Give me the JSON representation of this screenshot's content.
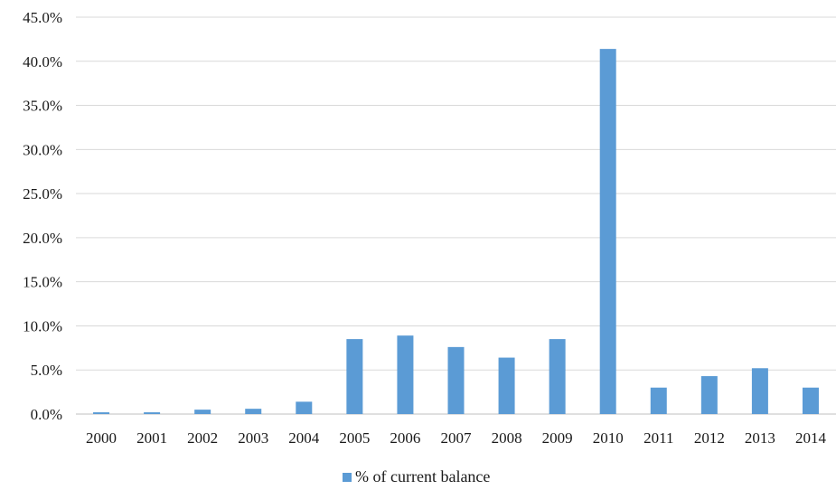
{
  "chart_data": {
    "type": "bar",
    "title": "",
    "xlabel": "",
    "ylabel": "",
    "categories": [
      "2000",
      "2001",
      "2002",
      "2003",
      "2004",
      "2005",
      "2006",
      "2007",
      "2008",
      "2009",
      "2010",
      "2011",
      "2012",
      "2013",
      "2014"
    ],
    "series": [
      {
        "name": "% of current balance",
        "values": [
          0.2,
          0.2,
          0.5,
          0.6,
          1.4,
          8.5,
          8.9,
          7.6,
          6.4,
          8.5,
          41.4,
          3.0,
          4.3,
          5.2,
          3.0
        ],
        "color": "#5B9BD5"
      }
    ],
    "ylim": [
      0,
      45
    ],
    "yticks": [
      0,
      5,
      10,
      15,
      20,
      25,
      30,
      35,
      40,
      45
    ],
    "ytick_labels": [
      "0.0%",
      "5.0%",
      "10.0%",
      "15.0%",
      "20.0%",
      "25.0%",
      "30.0%",
      "35.0%",
      "40.0%",
      "45.0%"
    ],
    "grid": true,
    "legend_position": "bottom"
  }
}
